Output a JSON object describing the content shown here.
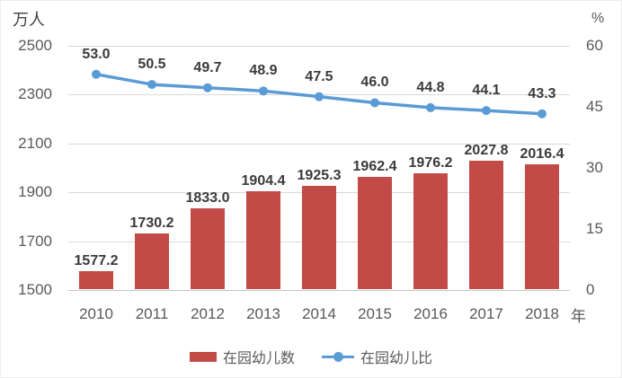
{
  "chart_data": {
    "type": "bar",
    "subtype": "combo-bar-line",
    "title": "",
    "categories": [
      "2010",
      "2011",
      "2012",
      "2013",
      "2014",
      "2015",
      "2016",
      "2017",
      "2018"
    ],
    "series": [
      {
        "name": "在园幼儿数",
        "type": "bar",
        "axis": "left",
        "color": "#c24b47",
        "values": [
          1577.2,
          1730.2,
          1833.0,
          1904.4,
          1925.3,
          1962.4,
          1976.2,
          2027.8,
          2016.4
        ]
      },
      {
        "name": "在园幼儿比",
        "type": "line",
        "axis": "right",
        "color": "#5b9bd5",
        "values": [
          53.0,
          50.5,
          49.7,
          48.9,
          47.5,
          46.0,
          44.8,
          44.1,
          43.3
        ]
      }
    ],
    "left_axis": {
      "title": "万人",
      "min": 1500,
      "max": 2500,
      "ticks": [
        2500,
        2300,
        2100,
        1900,
        1700,
        1500
      ]
    },
    "right_axis": {
      "title": "%",
      "min": 0,
      "max": 60,
      "ticks": [
        60,
        45,
        30,
        15,
        0
      ]
    },
    "x_axis": {
      "title": "年"
    },
    "grid": true,
    "legend_position": "bottom",
    "data_labels": true
  },
  "style": {
    "grid_color": "#d9d9d9",
    "axis_color": "#c6c6c6",
    "tick_color": "#595959",
    "data_label_color": "#3a3a3a",
    "background": "#ffffff"
  }
}
